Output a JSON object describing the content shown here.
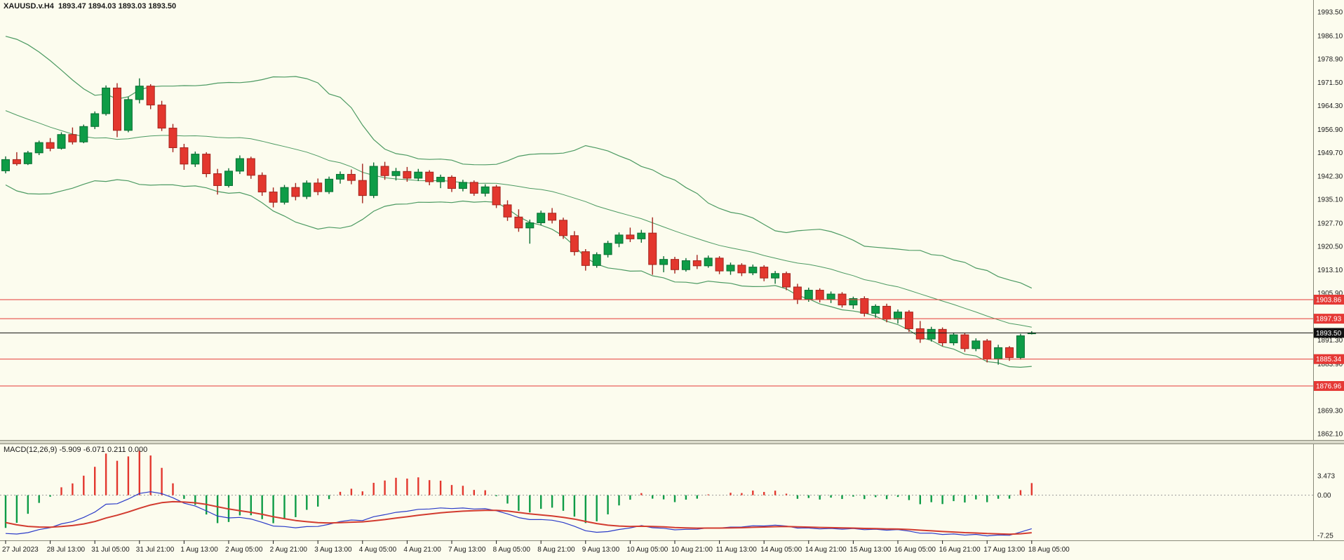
{
  "header": {
    "symbol": "XAUUSD.v.H4",
    "ohlc": "1893.47 1894.03 1893.03 1893.50"
  },
  "macd_panel": {
    "label": "MACD(12,26,9) -5.909 -6.071 0.211 0.000",
    "scale_tick_labels": [
      "3.473",
      "0.00",
      "-7.25"
    ],
    "scale_tick_values": [
      3.473,
      0.0,
      -7.25
    ]
  },
  "colors": {
    "background": "#FCFCEE",
    "bull": "#0E9C47",
    "bull_stroke": "#0A6E33",
    "bear": "#E3372E",
    "bear_stroke": "#A3241D",
    "bollinger": "#4C9A62",
    "level": "#E53935",
    "current_line": "#111111",
    "macd_line": "#2B3BC8",
    "signal_line": "#D23B2F",
    "hist_pos": "#E3372E",
    "hist_neg": "#0E9C47",
    "axis_line": "#8A8A7A",
    "axis_text": "#1A1A1A",
    "splitter_fill": "#D9D9C9",
    "zero_line": "#9A9A9A"
  },
  "chart_data": {
    "type": "candlestick",
    "title": "XAUUSD.v.H4",
    "symbol": "XAUUSD.v",
    "timeframe": "H4",
    "ohlc_current": {
      "open": 1893.47,
      "high": 1894.03,
      "low": 1893.03,
      "close": 1893.5
    },
    "ylim": [
      1862.1,
      1993.5
    ],
    "price_axis_ticks": [
      1993.5,
      1986.1,
      1978.9,
      1971.5,
      1964.3,
      1956.9,
      1949.7,
      1942.3,
      1935.1,
      1927.7,
      1920.5,
      1913.1,
      1905.9,
      1898.5,
      1891.3,
      1883.9,
      1876.5,
      1869.3,
      1862.1
    ],
    "levels": [
      1903.86,
      1897.93,
      1885.34,
      1876.96
    ],
    "current_price": 1893.5,
    "bars_per_label": 4,
    "time_labels": [
      "27 Jul 2023",
      "28 Jul 13:00",
      "31 Jul 05:00",
      "31 Jul 21:00",
      "1 Aug 13:00",
      "2 Aug 05:00",
      "2 Aug 21:00",
      "3 Aug 13:00",
      "4 Aug 05:00",
      "4 Aug 21:00",
      "7 Aug 13:00",
      "8 Aug 05:00",
      "8 Aug 21:00",
      "9 Aug 13:00",
      "10 Aug 05:00",
      "10 Aug 21:00",
      "11 Aug 13:00",
      "14 Aug 05:00",
      "14 Aug 21:00",
      "15 Aug 13:00",
      "16 Aug 05:00",
      "16 Aug 21:00",
      "17 Aug 13:00",
      "18 Aug 05:00"
    ],
    "indicators": {
      "bollinger": {
        "period": 20,
        "deviation": 2
      },
      "macd": {
        "fast": 12,
        "slow": 26,
        "signal": 9,
        "display_values": [
          "-5.909",
          "-6.071",
          "0.211",
          "0.000"
        ]
      }
    },
    "pre_history_closes": [
      1972,
      1974,
      1975.5,
      1976.5,
      1977,
      1976.5,
      1975,
      1973,
      1971,
      1968.5,
      1966,
      1963,
      1960,
      1957,
      1954,
      1951.5,
      1949.5,
      1948,
      1946.5,
      1945.2
    ],
    "candles": [
      [
        1944.0,
        1948.5,
        1943.2,
        1947.5
      ],
      [
        1947.5,
        1949.8,
        1945.6,
        1946.2
      ],
      [
        1946.2,
        1950.2,
        1945.8,
        1949.6
      ],
      [
        1949.6,
        1953.4,
        1948.9,
        1952.8
      ],
      [
        1952.8,
        1954.2,
        1950.1,
        1951.0
      ],
      [
        1951.0,
        1956.0,
        1950.6,
        1955.3
      ],
      [
        1955.3,
        1957.5,
        1952.2,
        1953.0
      ],
      [
        1953.0,
        1958.4,
        1952.6,
        1957.8
      ],
      [
        1957.8,
        1962.5,
        1957.0,
        1961.8
      ],
      [
        1961.8,
        1970.6,
        1961.2,
        1969.8
      ],
      [
        1969.8,
        1971.3,
        1954.5,
        1956.6
      ],
      [
        1956.6,
        1967.0,
        1956.0,
        1966.2
      ],
      [
        1966.2,
        1972.8,
        1965.0,
        1970.4
      ],
      [
        1970.4,
        1971.0,
        1963.2,
        1964.5
      ],
      [
        1964.5,
        1965.8,
        1956.4,
        1957.3
      ],
      [
        1957.3,
        1958.6,
        1949.8,
        1951.2
      ],
      [
        1951.2,
        1952.4,
        1944.3,
        1946.1
      ],
      [
        1946.1,
        1950.0,
        1945.2,
        1949.2
      ],
      [
        1949.2,
        1949.8,
        1942.0,
        1943.1
      ],
      [
        1943.1,
        1944.6,
        1936.6,
        1939.4
      ],
      [
        1939.4,
        1944.8,
        1938.8,
        1943.9
      ],
      [
        1943.9,
        1948.8,
        1943.0,
        1947.8
      ],
      [
        1947.8,
        1948.4,
        1941.5,
        1942.6
      ],
      [
        1942.6,
        1943.5,
        1936.2,
        1937.4
      ],
      [
        1937.4,
        1938.8,
        1932.6,
        1934.2
      ],
      [
        1934.2,
        1939.6,
        1933.5,
        1938.8
      ],
      [
        1938.8,
        1940.2,
        1934.8,
        1936.0
      ],
      [
        1936.0,
        1941.0,
        1935.2,
        1940.2
      ],
      [
        1940.2,
        1941.6,
        1936.4,
        1937.5
      ],
      [
        1937.5,
        1942.2,
        1936.8,
        1941.4
      ],
      [
        1941.4,
        1943.8,
        1940.0,
        1942.9
      ],
      [
        1942.9,
        1944.4,
        1939.8,
        1941.0
      ],
      [
        1941.0,
        1946.2,
        1933.9,
        1936.3
      ],
      [
        1936.3,
        1946.6,
        1935.5,
        1945.4
      ],
      [
        1945.4,
        1946.8,
        1941.2,
        1942.5
      ],
      [
        1942.5,
        1944.9,
        1941.0,
        1943.8
      ],
      [
        1943.8,
        1945.2,
        1940.6,
        1941.7
      ],
      [
        1941.7,
        1944.6,
        1940.8,
        1943.6
      ],
      [
        1943.6,
        1944.2,
        1939.5,
        1940.6
      ],
      [
        1940.6,
        1942.8,
        1938.6,
        1942.0
      ],
      [
        1942.0,
        1942.6,
        1937.4,
        1938.5
      ],
      [
        1938.5,
        1941.2,
        1937.6,
        1940.4
      ],
      [
        1940.4,
        1941.0,
        1936.2,
        1937.0
      ],
      [
        1937.0,
        1939.8,
        1936.0,
        1939.0
      ],
      [
        1939.0,
        1939.6,
        1932.4,
        1933.4
      ],
      [
        1933.4,
        1934.8,
        1928.4,
        1929.6
      ],
      [
        1929.6,
        1932.0,
        1925.0,
        1926.2
      ],
      [
        1926.2,
        1928.8,
        1921.3,
        1927.8
      ],
      [
        1927.8,
        1931.6,
        1927.0,
        1930.8
      ],
      [
        1930.8,
        1932.4,
        1927.6,
        1928.6
      ],
      [
        1928.6,
        1929.4,
        1922.8,
        1923.8
      ],
      [
        1923.8,
        1925.2,
        1917.6,
        1918.8
      ],
      [
        1918.8,
        1919.6,
        1912.9,
        1914.5
      ],
      [
        1914.5,
        1918.6,
        1913.8,
        1917.9
      ],
      [
        1917.9,
        1922.2,
        1917.0,
        1921.4
      ],
      [
        1921.4,
        1924.8,
        1920.2,
        1924.0
      ],
      [
        1924.0,
        1926.3,
        1921.8,
        1922.8
      ],
      [
        1922.8,
        1925.6,
        1921.6,
        1924.6
      ],
      [
        1924.6,
        1929.5,
        1911.6,
        1914.8
      ],
      [
        1914.8,
        1917.4,
        1912.4,
        1916.4
      ],
      [
        1916.4,
        1917.2,
        1912.0,
        1913.2
      ],
      [
        1913.2,
        1916.8,
        1912.6,
        1916.0
      ],
      [
        1916.0,
        1917.8,
        1913.4,
        1914.4
      ],
      [
        1914.4,
        1917.6,
        1913.8,
        1916.8
      ],
      [
        1916.8,
        1917.4,
        1911.8,
        1912.8
      ],
      [
        1912.8,
        1915.4,
        1911.6,
        1914.6
      ],
      [
        1914.6,
        1915.2,
        1911.2,
        1912.2
      ],
      [
        1912.2,
        1914.8,
        1911.5,
        1914.0
      ],
      [
        1914.0,
        1914.6,
        1909.6,
        1910.6
      ],
      [
        1910.6,
        1912.8,
        1908.8,
        1912.0
      ],
      [
        1912.0,
        1912.6,
        1906.8,
        1907.8
      ],
      [
        1907.8,
        1908.8,
        1902.5,
        1904.0
      ],
      [
        1904.0,
        1907.6,
        1903.2,
        1906.8
      ],
      [
        1906.8,
        1907.4,
        1903.0,
        1903.9
      ],
      [
        1903.9,
        1906.4,
        1902.8,
        1905.6
      ],
      [
        1905.6,
        1906.2,
        1901.4,
        1902.2
      ],
      [
        1902.2,
        1904.8,
        1901.0,
        1904.2
      ],
      [
        1904.2,
        1904.9,
        1898.6,
        1899.6
      ],
      [
        1899.6,
        1902.4,
        1898.2,
        1901.8
      ],
      [
        1901.8,
        1902.6,
        1896.8,
        1897.8
      ],
      [
        1897.8,
        1900.8,
        1896.4,
        1900.0
      ],
      [
        1900.0,
        1900.6,
        1893.8,
        1894.8
      ],
      [
        1894.8,
        1897.2,
        1890.4,
        1891.6
      ],
      [
        1891.6,
        1895.4,
        1890.8,
        1894.6
      ],
      [
        1894.6,
        1895.2,
        1889.4,
        1890.4
      ],
      [
        1890.4,
        1893.6,
        1889.6,
        1892.9
      ],
      [
        1892.9,
        1893.4,
        1887.6,
        1888.6
      ],
      [
        1888.6,
        1891.8,
        1887.8,
        1891.0
      ],
      [
        1891.0,
        1891.6,
        1884.3,
        1885.4
      ],
      [
        1885.4,
        1889.8,
        1883.6,
        1888.9
      ],
      [
        1888.9,
        1889.4,
        1884.8,
        1885.8
      ],
      [
        1885.8,
        1893.2,
        1885.2,
        1892.6
      ],
      [
        1893.47,
        1894.03,
        1893.03,
        1893.5
      ]
    ]
  }
}
